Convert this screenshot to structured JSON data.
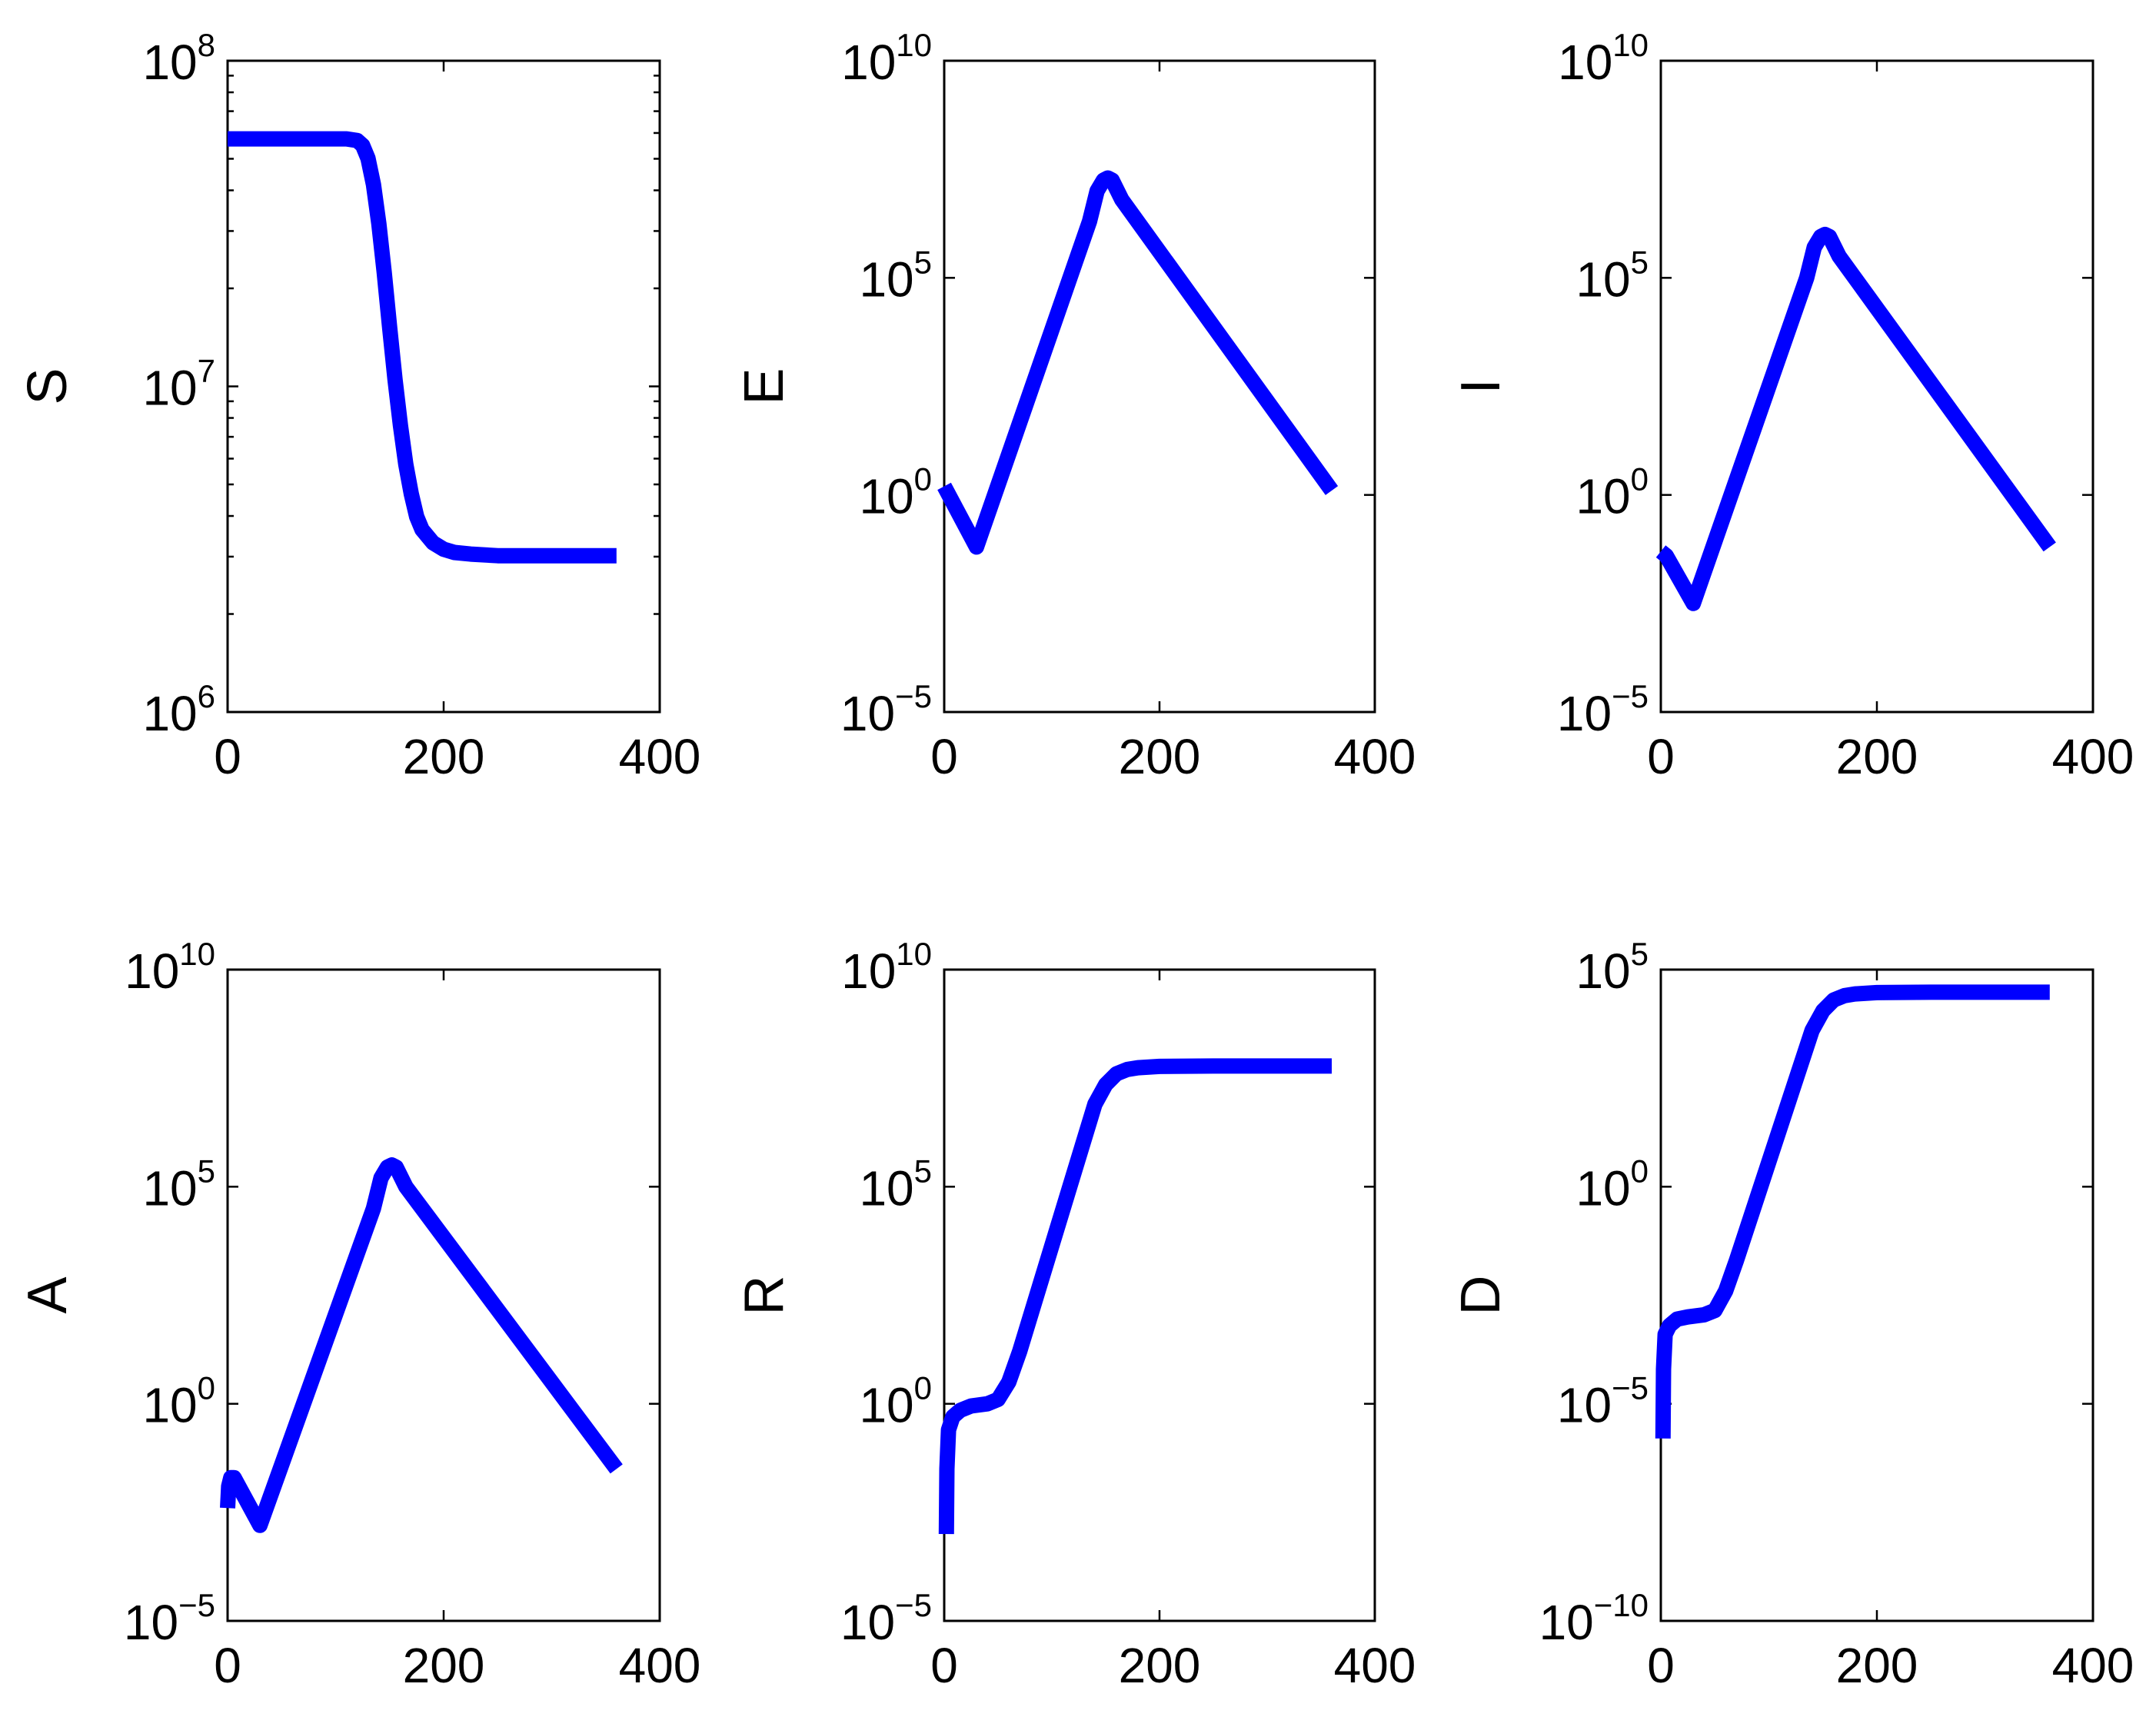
{
  "chart_data": [
    {
      "type": "line",
      "ylabel": "S",
      "yscale": "log",
      "xlim": [
        0,
        400
      ],
      "ylim_exp": [
        6,
        8
      ],
      "xticks": [
        "0",
        "200",
        "400"
      ],
      "yticks": [
        {
          "base": "10",
          "exp": "6"
        },
        {
          "base": "10",
          "exp": "7"
        },
        {
          "base": "10",
          "exp": "8"
        }
      ],
      "color": "#0000ff",
      "series": [
        {
          "x": [
            0,
            100,
            110,
            120,
            125,
            130,
            135,
            140,
            145,
            150,
            155,
            160,
            165,
            170,
            175,
            180,
            190,
            200,
            210,
            225,
            250,
            300,
            360
          ],
          "log10_y": [
            7.76,
            7.76,
            7.76,
            7.755,
            7.74,
            7.7,
            7.62,
            7.5,
            7.35,
            7.18,
            7.02,
            6.88,
            6.76,
            6.67,
            6.6,
            6.56,
            6.52,
            6.5,
            6.49,
            6.485,
            6.48,
            6.48,
            6.48
          ]
        }
      ]
    },
    {
      "type": "line",
      "ylabel": "E",
      "yscale": "log",
      "xlim": [
        0,
        400
      ],
      "ylim_exp": [
        -5,
        10
      ],
      "xticks": [
        "0",
        "200",
        "400"
      ],
      "yticks": [
        {
          "base": "10",
          "exp": "−5"
        },
        {
          "base": "10",
          "exp": "0"
        },
        {
          "base": "10",
          "exp": "5"
        },
        {
          "base": "10",
          "exp": "10"
        }
      ],
      "color": "#0000ff",
      "series": [
        {
          "x": [
            0,
            30,
            135,
            142,
            148,
            152,
            156,
            165,
            360
          ],
          "log10_y": [
            0.2,
            -1.2,
            6.3,
            7.0,
            7.25,
            7.3,
            7.25,
            6.8,
            0.1
          ]
        }
      ]
    },
    {
      "type": "line",
      "ylabel": "I",
      "yscale": "log",
      "xlim": [
        0,
        400
      ],
      "ylim_exp": [
        -5,
        10
      ],
      "xticks": [
        "0",
        "200",
        "400"
      ],
      "yticks": [
        {
          "base": "10",
          "exp": "−5"
        },
        {
          "base": "10",
          "exp": "0"
        },
        {
          "base": "10",
          "exp": "5"
        },
        {
          "base": "10",
          "exp": "10"
        }
      ],
      "color": "#0000ff",
      "series": [
        {
          "x": [
            0,
            5,
            30,
            135,
            142,
            148,
            152,
            156,
            165,
            360
          ],
          "log10_y": [
            -1.3,
            -1.4,
            -2.5,
            5.0,
            5.7,
            5.95,
            6.0,
            5.95,
            5.5,
            -1.2
          ]
        }
      ]
    },
    {
      "type": "line",
      "ylabel": "A",
      "yscale": "log",
      "xlim": [
        0,
        400
      ],
      "ylim_exp": [
        -5,
        10
      ],
      "xticks": [
        "0",
        "200",
        "400"
      ],
      "yticks": [
        {
          "base": "10",
          "exp": "−5"
        },
        {
          "base": "10",
          "exp": "0"
        },
        {
          "base": "10",
          "exp": "5"
        },
        {
          "base": "10",
          "exp": "10"
        }
      ],
      "color": "#0000ff",
      "series": [
        {
          "x": [
            0,
            1,
            3,
            6,
            30,
            135,
            142,
            148,
            152,
            156,
            165,
            360
          ],
          "log10_y": [
            -2.4,
            -1.9,
            -1.7,
            -1.7,
            -2.8,
            4.5,
            5.2,
            5.45,
            5.5,
            5.45,
            5.0,
            -1.5
          ]
        }
      ]
    },
    {
      "type": "line",
      "ylabel": "R",
      "yscale": "log",
      "xlim": [
        0,
        400
      ],
      "ylim_exp": [
        -5,
        10
      ],
      "xticks": [
        "0",
        "200",
        "400"
      ],
      "yticks": [
        {
          "base": "10",
          "exp": "−5"
        },
        {
          "base": "10",
          "exp": "0"
        },
        {
          "base": "10",
          "exp": "5"
        },
        {
          "base": "10",
          "exp": "10"
        }
      ],
      "color": "#0000ff",
      "series": [
        {
          "x": [
            2,
            2.5,
            4,
            8,
            15,
            25,
            40,
            50,
            60,
            70,
            140,
            150,
            160,
            170,
            180,
            200,
            250,
            300,
            360
          ],
          "log10_y": [
            -3.0,
            -1.5,
            -0.6,
            -0.3,
            -0.15,
            -0.05,
            0,
            0.1,
            0.5,
            1.2,
            6.9,
            7.35,
            7.6,
            7.7,
            7.74,
            7.77,
            7.78,
            7.78,
            7.78
          ]
        }
      ]
    },
    {
      "type": "line",
      "ylabel": "D",
      "yscale": "log",
      "xlim": [
        0,
        400
      ],
      "ylim_exp": [
        -10,
        5
      ],
      "xticks": [
        "0",
        "200",
        "400"
      ],
      "yticks": [
        {
          "base": "10",
          "exp": "−10"
        },
        {
          "base": "10",
          "exp": "−5"
        },
        {
          "base": "10",
          "exp": "0"
        },
        {
          "base": "10",
          "exp": "5"
        }
      ],
      "color": "#0000ff",
      "series": [
        {
          "x": [
            2,
            2.5,
            4,
            8,
            15,
            25,
            40,
            50,
            60,
            70,
            140,
            150,
            160,
            170,
            180,
            200,
            250,
            300,
            360
          ],
          "log10_y": [
            -5.8,
            -4.2,
            -3.4,
            -3.2,
            -3.05,
            -3.0,
            -2.95,
            -2.85,
            -2.4,
            -1.7,
            3.6,
            4.05,
            4.3,
            4.4,
            4.44,
            4.47,
            4.48,
            4.48,
            4.48
          ]
        }
      ]
    }
  ]
}
